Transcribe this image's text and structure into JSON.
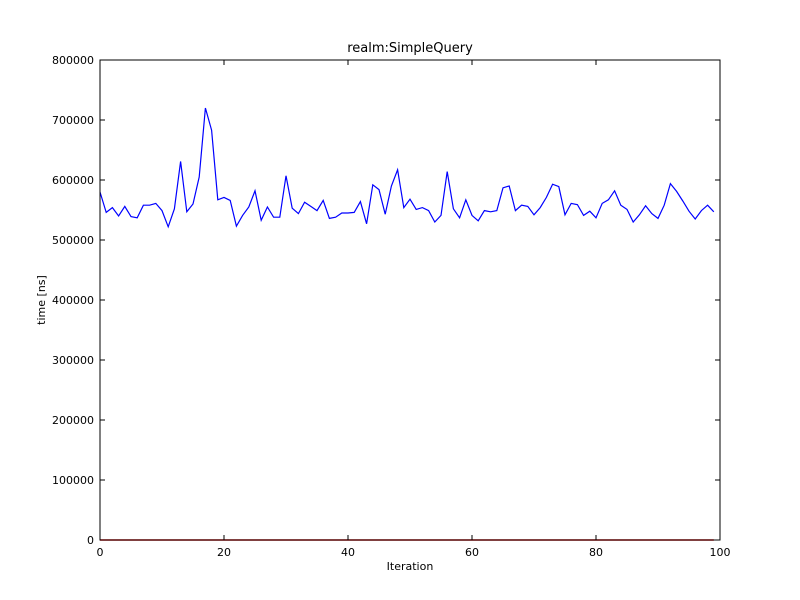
{
  "chart_data": {
    "type": "line",
    "title": "realm:SimpleQuery",
    "xlabel": "Iteration",
    "ylabel": "time [ns]",
    "xlim": [
      0,
      100
    ],
    "ylim": [
      0,
      800000
    ],
    "xticks": [
      0,
      20,
      40,
      60,
      80,
      100
    ],
    "yticks": [
      0,
      100000,
      200000,
      300000,
      400000,
      500000,
      600000,
      700000,
      800000
    ],
    "grid": false,
    "legend": "none",
    "series": [
      {
        "color": "#0000ff",
        "x": [
          0,
          1,
          2,
          3,
          4,
          5,
          6,
          7,
          8,
          9,
          10,
          11,
          12,
          13,
          14,
          15,
          16,
          17,
          18,
          19,
          20,
          21,
          22,
          23,
          24,
          25,
          26,
          27,
          28,
          29,
          30,
          31,
          32,
          33,
          34,
          35,
          36,
          37,
          38,
          39,
          40,
          41,
          42,
          43,
          44,
          45,
          46,
          47,
          48,
          49,
          50,
          51,
          52,
          53,
          54,
          55,
          56,
          57,
          58,
          59,
          60,
          61,
          62,
          63,
          64,
          65,
          66,
          67,
          68,
          69,
          70,
          71,
          72,
          73,
          74,
          75,
          76,
          77,
          78,
          79,
          80,
          81,
          82,
          83,
          84,
          85,
          86,
          87,
          88,
          89,
          90,
          91,
          92,
          93,
          94,
          95,
          96,
          97,
          98,
          99
        ],
        "y": [
          580000,
          546000,
          554000,
          540000,
          556000,
          539000,
          537000,
          558000,
          558000,
          561000,
          549000,
          522000,
          552000,
          631000,
          547000,
          560000,
          605000,
          720000,
          683000,
          567000,
          571000,
          566000,
          523000,
          541000,
          555000,
          582000,
          533000,
          555000,
          538000,
          538000,
          607000,
          553000,
          544000,
          563000,
          556000,
          549000,
          566000,
          536000,
          538000,
          545000,
          545000,
          546000,
          564000,
          527000,
          592000,
          584000,
          543000,
          590000,
          617000,
          554000,
          568000,
          551000,
          554000,
          549000,
          530000,
          541000,
          614000,
          552000,
          537000,
          567000,
          541000,
          532000,
          549000,
          547000,
          549000,
          587000,
          590000,
          549000,
          558000,
          556000,
          542000,
          554000,
          571000,
          593000,
          589000,
          542000,
          561000,
          559000,
          541000,
          548000,
          537000,
          561000,
          567000,
          582000,
          558000,
          551000,
          530000,
          542000,
          557000,
          544000,
          536000,
          558000,
          594000,
          581000,
          565000,
          548000,
          535000,
          549000,
          558000,
          547000
        ]
      },
      {
        "color": "#ff0000",
        "x": [
          0,
          99
        ],
        "y": [
          0,
          0
        ]
      }
    ]
  }
}
